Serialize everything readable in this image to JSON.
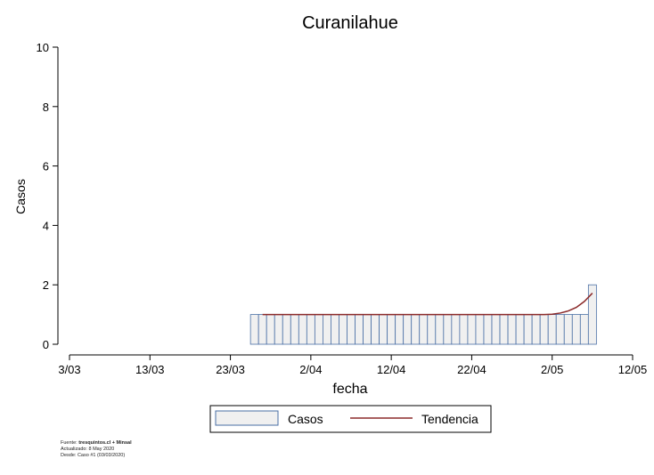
{
  "chart_data": {
    "type": "bar",
    "title": "Curanilahue",
    "xlabel": "fecha",
    "ylabel": "Casos",
    "ylim": [
      0,
      10
    ],
    "yticks": [
      0,
      2,
      4,
      6,
      8,
      10
    ],
    "xlim": [
      "2020-03-03",
      "2020-05-12"
    ],
    "xtick_labels": [
      "3/03",
      "13/03",
      "23/03",
      "2/04",
      "12/04",
      "22/04",
      "2/05",
      "12/05"
    ],
    "xtick_dates": [
      "2020-03-03",
      "2020-03-13",
      "2020-03-23",
      "2020-04-02",
      "2020-04-12",
      "2020-04-22",
      "2020-05-02",
      "2020-05-12"
    ],
    "grid": false,
    "legend_position": "bottom",
    "series": [
      {
        "name": "Casos",
        "kind": "bar",
        "color": "#f0f0f0",
        "edge_color": "#4a6fa5",
        "points": [
          [
            "2020-03-26",
            1
          ],
          [
            "2020-03-27",
            1
          ],
          [
            "2020-03-28",
            1
          ],
          [
            "2020-03-29",
            1
          ],
          [
            "2020-03-30",
            1
          ],
          [
            "2020-03-31",
            1
          ],
          [
            "2020-04-01",
            1
          ],
          [
            "2020-04-02",
            1
          ],
          [
            "2020-04-03",
            1
          ],
          [
            "2020-04-04",
            1
          ],
          [
            "2020-04-05",
            1
          ],
          [
            "2020-04-06",
            1
          ],
          [
            "2020-04-07",
            1
          ],
          [
            "2020-04-08",
            1
          ],
          [
            "2020-04-09",
            1
          ],
          [
            "2020-04-10",
            1
          ],
          [
            "2020-04-11",
            1
          ],
          [
            "2020-04-12",
            1
          ],
          [
            "2020-04-13",
            1
          ],
          [
            "2020-04-14",
            1
          ],
          [
            "2020-04-15",
            1
          ],
          [
            "2020-04-16",
            1
          ],
          [
            "2020-04-17",
            1
          ],
          [
            "2020-04-18",
            1
          ],
          [
            "2020-04-19",
            1
          ],
          [
            "2020-04-20",
            1
          ],
          [
            "2020-04-21",
            1
          ],
          [
            "2020-04-22",
            1
          ],
          [
            "2020-04-23",
            1
          ],
          [
            "2020-04-24",
            1
          ],
          [
            "2020-04-25",
            1
          ],
          [
            "2020-04-26",
            1
          ],
          [
            "2020-04-27",
            1
          ],
          [
            "2020-04-28",
            1
          ],
          [
            "2020-04-29",
            1
          ],
          [
            "2020-04-30",
            1
          ],
          [
            "2020-05-01",
            1
          ],
          [
            "2020-05-02",
            1
          ],
          [
            "2020-05-03",
            1
          ],
          [
            "2020-05-04",
            1
          ],
          [
            "2020-05-05",
            1
          ],
          [
            "2020-05-06",
            1
          ],
          [
            "2020-05-07",
            2
          ]
        ]
      },
      {
        "name": "Tendencia",
        "kind": "line",
        "color": "#8b2a2a",
        "points": [
          [
            "2020-03-27",
            1.0
          ],
          [
            "2020-04-02",
            1.0
          ],
          [
            "2020-04-12",
            1.0
          ],
          [
            "2020-04-22",
            1.0
          ],
          [
            "2020-05-01",
            1.0
          ],
          [
            "2020-05-02",
            1.01
          ],
          [
            "2020-05-03",
            1.05
          ],
          [
            "2020-05-04",
            1.12
          ],
          [
            "2020-05-05",
            1.24
          ],
          [
            "2020-05-06",
            1.44
          ],
          [
            "2020-05-07",
            1.72
          ]
        ]
      }
    ]
  },
  "footer": {
    "line1_prefix": "Fuente: ",
    "line1_bold": "tresquintos.cl + Minsal",
    "line2": "Actualizado: 8 May 2020",
    "line3": "Desde: Caso #1  (03/03/2020)"
  }
}
